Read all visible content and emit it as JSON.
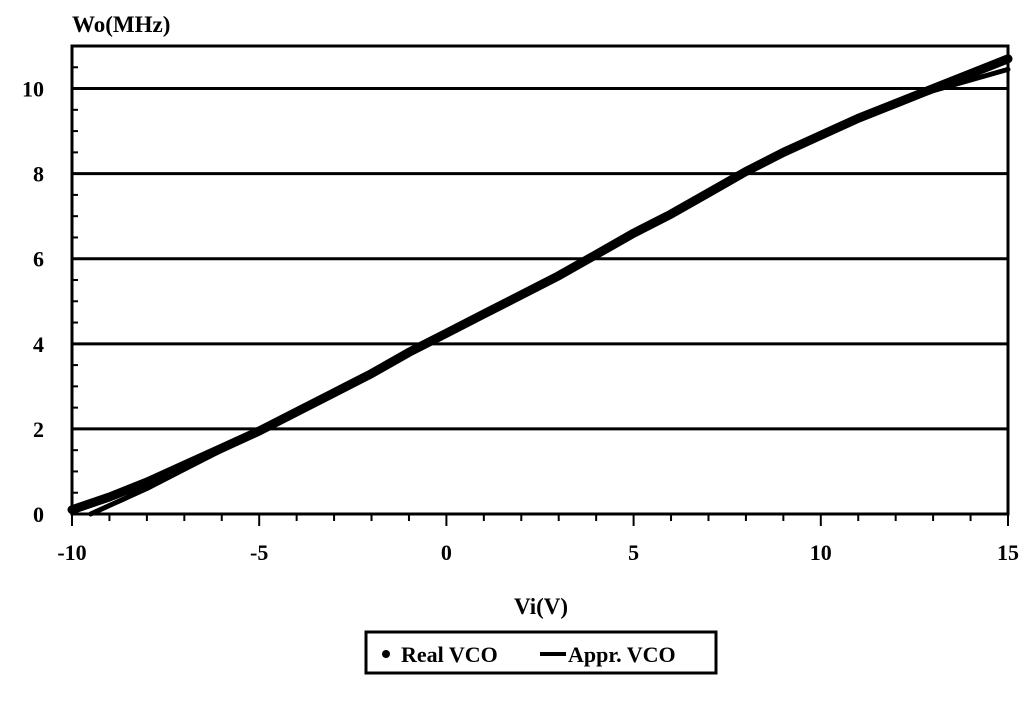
{
  "chart_data": {
    "type": "line",
    "ylabel": "Wo(MHz)",
    "xlabel": "Vi(V)",
    "xlim": [
      -10,
      15
    ],
    "ylim": [
      0,
      11
    ],
    "x_ticks": [
      "-10",
      "-5",
      "0",
      "5",
      "10",
      "15"
    ],
    "y_ticks": [
      "0",
      "2",
      "4",
      "6",
      "8",
      "10"
    ],
    "grid": "horizontal",
    "legend_position": "bottom-center",
    "series": [
      {
        "name": "Real VCO",
        "marker": "dot",
        "x": [
          -10,
          -9,
          -8,
          -7,
          -6,
          -5,
          -4,
          -3,
          -2,
          -1,
          0,
          1,
          2,
          3,
          4,
          5,
          6,
          7,
          8,
          9,
          10,
          11,
          12,
          13,
          14,
          15
        ],
        "y": [
          0.1,
          0.4,
          0.75,
          1.15,
          1.55,
          1.95,
          2.4,
          2.85,
          3.3,
          3.8,
          4.25,
          4.7,
          5.15,
          5.6,
          6.1,
          6.6,
          7.05,
          7.55,
          8.05,
          8.5,
          8.9,
          9.3,
          9.65,
          10.0,
          10.35,
          10.7
        ]
      },
      {
        "name": "Appr. VCO",
        "marker": "line",
        "x": [
          -9.5,
          -9,
          -8,
          -7,
          -6,
          -5,
          -4,
          -3,
          -2,
          -1,
          0,
          1,
          2,
          3,
          4,
          5,
          6,
          7,
          8,
          9,
          10,
          11,
          12,
          13,
          14,
          15
        ],
        "y": [
          0.0,
          0.2,
          0.6,
          1.05,
          1.5,
          1.95,
          2.4,
          2.85,
          3.3,
          3.8,
          4.25,
          4.7,
          5.15,
          5.6,
          6.1,
          6.6,
          7.05,
          7.55,
          8.05,
          8.5,
          8.9,
          9.3,
          9.65,
          9.95,
          10.2,
          10.45
        ]
      }
    ]
  }
}
